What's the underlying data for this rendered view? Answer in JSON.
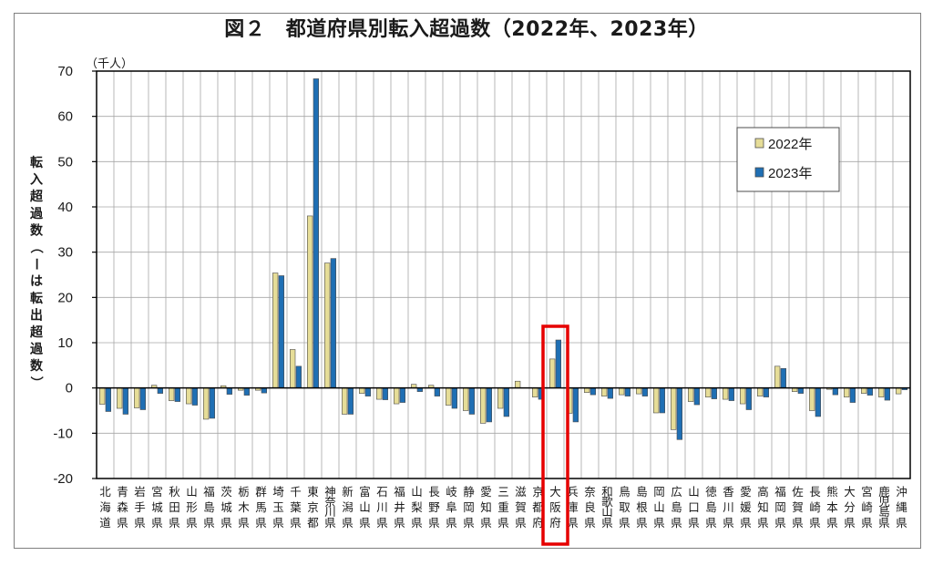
{
  "title": "図２　都道府県別転入超過数（2022年、2023年）",
  "unit": "（千人）",
  "colors": {
    "series_2022": "#e6dd98",
    "series_2023": "#1f6fb4",
    "bar_outline": "#4d4d4d",
    "highlight": "#e60000",
    "grid": "#a6a6a6",
    "axis": "#000000"
  },
  "chart_data": {
    "type": "bar",
    "title": "図２　都道府県別転入超過数（2022年、2023年）",
    "ylabel": "転入超過数（ーは転出超過数）",
    "yunit": "（千人）",
    "ylim": [
      -20,
      70
    ],
    "yticks": [
      -20,
      -10,
      0,
      10,
      20,
      30,
      40,
      50,
      60,
      70
    ],
    "grid": true,
    "legend_position": "top-right",
    "highlight_category": "大阪府",
    "categories": [
      "北海道",
      "青森県",
      "岩手県",
      "宮城県",
      "秋田県",
      "山形県",
      "福島県",
      "茨城県",
      "栃木県",
      "群馬県",
      "埼玉県",
      "千葉県",
      "東京都",
      "神奈川県",
      "新潟県",
      "富山県",
      "石川県",
      "福井県",
      "山梨県",
      "長野県",
      "岐阜県",
      "静岡県",
      "愛知県",
      "三重県",
      "滋賀県",
      "京都府",
      "大阪府",
      "兵庫県",
      "奈良県",
      "和歌山県",
      "鳥取県",
      "島根県",
      "岡山県",
      "広島県",
      "山口県",
      "徳島県",
      "香川県",
      "愛媛県",
      "高知県",
      "福岡県",
      "佐賀県",
      "長崎県",
      "熊本県",
      "大分県",
      "宮崎県",
      "鹿児島県",
      "沖縄県"
    ],
    "series": [
      {
        "name": "2022年",
        "values": [
          -3.6,
          -4.5,
          -4.4,
          0.6,
          -2.8,
          -3.5,
          -6.9,
          0.5,
          -0.5,
          -0.5,
          25.4,
          8.5,
          38.0,
          27.6,
          -5.8,
          -1.2,
          -2.5,
          -3.5,
          0.8,
          0.6,
          -3.8,
          -5.0,
          -7.8,
          -4.5,
          1.5,
          -2.0,
          6.4,
          -5.6,
          -1.0,
          -1.8,
          -1.5,
          -1.3,
          -5.5,
          -9.2,
          -3.0,
          -2.0,
          -2.5,
          -3.5,
          -1.8,
          4.8,
          -0.8,
          -5.0,
          -0.3,
          -2.0,
          -1.2,
          -2.0,
          -1.3
        ]
      },
      {
        "name": "2023年",
        "values": [
          -5.2,
          -5.8,
          -4.8,
          -1.2,
          -3.0,
          -3.8,
          -6.7,
          -1.4,
          -1.6,
          -1.1,
          24.8,
          4.8,
          68.3,
          28.6,
          -5.8,
          -1.8,
          -2.6,
          -3.2,
          -0.8,
          -1.8,
          -4.5,
          -5.8,
          -7.5,
          -6.3,
          0.0,
          -2.5,
          10.6,
          -7.5,
          -1.5,
          -2.3,
          -1.8,
          -1.8,
          -5.5,
          -11.4,
          -3.7,
          -2.4,
          -2.8,
          -4.8,
          -2.0,
          4.3,
          -1.2,
          -6.3,
          -1.5,
          -3.2,
          -1.6,
          -2.7,
          -0.4
        ]
      }
    ],
    "category_label_chars": [
      [
        "北",
        "海",
        "道"
      ],
      [
        "青",
        "森",
        "県"
      ],
      [
        "岩",
        "手",
        "県"
      ],
      [
        "宮",
        "城",
        "県"
      ],
      [
        "秋",
        "田",
        "県"
      ],
      [
        "山",
        "形",
        "県"
      ],
      [
        "福",
        "島",
        "県"
      ],
      [
        "茨",
        "城",
        "県"
      ],
      [
        "栃",
        "木",
        "県"
      ],
      [
        "群",
        "馬",
        "県"
      ],
      [
        "埼",
        "玉",
        "県"
      ],
      [
        "千",
        "葉",
        "県"
      ],
      [
        "東",
        "京",
        "都"
      ],
      [
        "神",
        "奈",
        "川",
        "県"
      ],
      [
        "新",
        "潟",
        "県"
      ],
      [
        "富",
        "山",
        "県"
      ],
      [
        "石",
        "川",
        "県"
      ],
      [
        "福",
        "井",
        "県"
      ],
      [
        "山",
        "梨",
        "県"
      ],
      [
        "長",
        "野",
        "県"
      ],
      [
        "岐",
        "阜",
        "県"
      ],
      [
        "静",
        "岡",
        "県"
      ],
      [
        "愛",
        "知",
        "県"
      ],
      [
        "三",
        "重",
        "県"
      ],
      [
        "滋",
        "賀",
        "県"
      ],
      [
        "京",
        "都",
        "府"
      ],
      [
        "大",
        "阪",
        "府"
      ],
      [
        "兵",
        "庫",
        "県"
      ],
      [
        "奈",
        "良",
        "県"
      ],
      [
        "和",
        "歌",
        "山",
        "県"
      ],
      [
        "鳥",
        "取",
        "県"
      ],
      [
        "島",
        "根",
        "県"
      ],
      [
        "岡",
        "山",
        "県"
      ],
      [
        "広",
        "島",
        "県"
      ],
      [
        "山",
        "口",
        "県"
      ],
      [
        "徳",
        "島",
        "県"
      ],
      [
        "香",
        "川",
        "県"
      ],
      [
        "愛",
        "媛",
        "県"
      ],
      [
        "高",
        "知",
        "県"
      ],
      [
        "福",
        "岡",
        "県"
      ],
      [
        "佐",
        "賀",
        "県"
      ],
      [
        "長",
        "崎",
        "県"
      ],
      [
        "熊",
        "本",
        "県"
      ],
      [
        "大",
        "分",
        "県"
      ],
      [
        "宮",
        "崎",
        "県"
      ],
      [
        "鹿",
        "児",
        "島",
        "県"
      ],
      [
        "沖",
        "縄",
        "県"
      ]
    ]
  }
}
